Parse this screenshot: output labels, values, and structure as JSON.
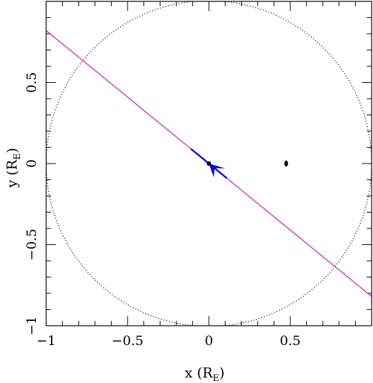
{
  "chart_data": {
    "type": "scatter",
    "xlabel": "x (R",
    "xlabel_sub": "E",
    "xlabel_close": ")",
    "ylabel": "y (R",
    "ylabel_sub": "E",
    "ylabel_close": ")",
    "xlim": [
      -1,
      1
    ],
    "ylim": [
      -1,
      1
    ],
    "x_ticks": [
      -1,
      -0.5,
      0,
      0.5
    ],
    "x_tick_labels": [
      "−1",
      "−0.5",
      "0",
      "0.5"
    ],
    "y_ticks": [
      -1,
      -0.5,
      0,
      0.5
    ],
    "y_tick_labels": [
      "−1",
      "−0.5",
      "0",
      "0.5"
    ],
    "minor_tick_step": 0.1,
    "einstein_ring": {
      "cx": 0,
      "cy": 0,
      "r": 1,
      "style": "dotted",
      "color": "#000000"
    },
    "source_trajectory": {
      "points": [
        [
          -1,
          0.82
        ],
        [
          1,
          -0.82
        ]
      ],
      "color": "#cc33cc"
    },
    "lens_primary": {
      "x": 0,
      "y": 0,
      "color": "#000000"
    },
    "lens_companion": {
      "x": 0.475,
      "y": 0,
      "color": "#000000"
    },
    "caustic": {
      "color": "#0000ee",
      "line": [
        [
          -0.11,
          0.09
        ],
        [
          0.11,
          -0.09
        ]
      ],
      "cusp_arrow": [
        [
          0.0,
          0.0
        ],
        [
          0.03,
          -0.085
        ],
        [
          0.035,
          -0.028
        ],
        [
          0.1,
          -0.03
        ]
      ]
    }
  }
}
